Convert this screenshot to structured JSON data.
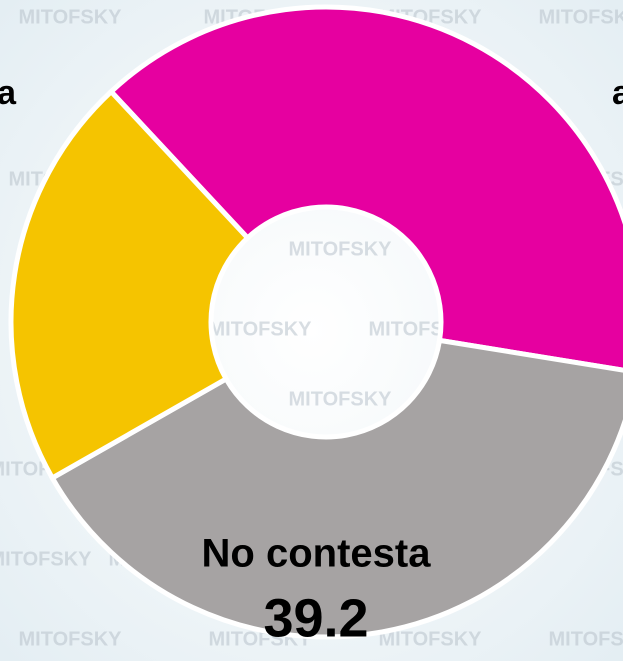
{
  "chart_data": {
    "type": "donut",
    "watermark": "MITOFSKY",
    "categories": [
      "a",
      "No contesta",
      "a"
    ],
    "values": [
      39.5,
      39.2,
      21.3
    ],
    "colors": [
      "#e600a0",
      "#a6a3a3",
      "#f5c400"
    ]
  }
}
